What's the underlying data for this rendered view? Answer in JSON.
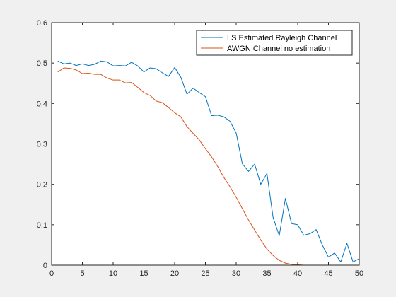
{
  "chart_data": {
    "type": "line",
    "xlim": [
      0,
      50
    ],
    "ylim": [
      0,
      0.6
    ],
    "xticks": [
      0,
      5,
      10,
      15,
      20,
      25,
      30,
      35,
      40,
      45,
      50
    ],
    "yticks": [
      0,
      0.1,
      0.2,
      0.3,
      0.4,
      0.5,
      0.6
    ],
    "grid": false,
    "legend_position": "top-right",
    "series": [
      {
        "name": "LS Estimated Rayleigh Channel",
        "color": "#0072bd",
        "x": [
          1,
          2,
          3,
          4,
          5,
          6,
          7,
          8,
          9,
          10,
          11,
          12,
          13,
          14,
          15,
          16,
          17,
          18,
          19,
          20,
          21,
          22,
          23,
          24,
          25,
          26,
          27,
          28,
          29,
          30,
          31,
          32,
          33,
          34,
          35,
          36,
          37,
          38,
          39,
          40,
          41,
          42,
          43,
          44,
          45,
          46,
          47,
          48,
          49,
          50
        ],
        "y": [
          0.505,
          0.498,
          0.5,
          0.494,
          0.498,
          0.494,
          0.497,
          0.505,
          0.503,
          0.493,
          0.494,
          0.493,
          0.502,
          0.493,
          0.478,
          0.488,
          0.486,
          0.476,
          0.467,
          0.489,
          0.465,
          0.423,
          0.438,
          0.427,
          0.417,
          0.37,
          0.371,
          0.367,
          0.356,
          0.327,
          0.251,
          0.232,
          0.25,
          0.2,
          0.227,
          0.118,
          0.073,
          0.165,
          0.103,
          0.1,
          0.074,
          0.078,
          0.088,
          0.05,
          0.02,
          0.03,
          0.008,
          0.054,
          0.008,
          0.016
        ]
      },
      {
        "name": "AWGN Channel no estimation",
        "color": "#d95319",
        "x": [
          1,
          2,
          3,
          4,
          5,
          6,
          7,
          8,
          9,
          10,
          11,
          12,
          13,
          14,
          15,
          16,
          17,
          18,
          19,
          20,
          21,
          22,
          23,
          24,
          25,
          26,
          27,
          28,
          29,
          30,
          31,
          32,
          33,
          34,
          35,
          36,
          37,
          38,
          39,
          40,
          41,
          42,
          43,
          44,
          45,
          46,
          47,
          48,
          49,
          50
        ],
        "y": [
          0.478,
          0.488,
          0.487,
          0.483,
          0.474,
          0.475,
          0.472,
          0.472,
          0.463,
          0.458,
          0.458,
          0.451,
          0.452,
          0.44,
          0.427,
          0.42,
          0.406,
          0.402,
          0.39,
          0.377,
          0.367,
          0.343,
          0.326,
          0.31,
          0.288,
          0.268,
          0.244,
          0.217,
          0.194,
          0.168,
          0.14,
          0.112,
          0.087,
          0.062,
          0.04,
          0.024,
          0.012,
          0.005,
          0.002,
          0.001,
          0.0,
          0.0,
          0.0,
          0.0,
          0.0,
          0.0,
          0.0,
          0.0,
          0.0,
          0.0
        ]
      }
    ]
  }
}
